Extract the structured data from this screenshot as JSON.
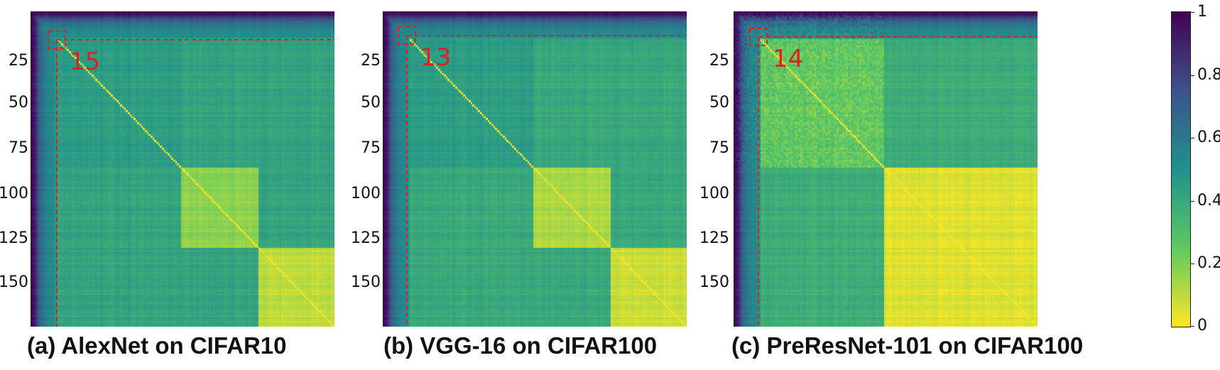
{
  "colors": {
    "colormap": [
      "#440154",
      "#3b528b",
      "#21918c",
      "#5ec962",
      "#fde725"
    ],
    "annotation": "#e02020"
  },
  "colorbar": {
    "ticks": [
      "1",
      "0.8",
      "0.6",
      "0.4",
      "0.2",
      "0"
    ]
  },
  "panels": [
    {
      "caption": "(a) AlexNet on CIFAR10",
      "annotation": "15"
    },
    {
      "caption": "(b) VGG-16 on CIFAR100",
      "annotation": "13"
    },
    {
      "caption": "(c) PreResNet-101 on CIFAR100",
      "annotation": "14"
    }
  ],
  "chart_data": [
    {
      "type": "heatmap",
      "title": "(a) AlexNet on CIFAR10",
      "size": 160,
      "yticks": [
        "25",
        "50",
        "75",
        "100",
        "125",
        "150"
      ],
      "ytick_values": [
        25,
        50,
        75,
        100,
        125,
        150
      ],
      "colorbar_range": [
        0,
        1
      ],
      "blocks": [
        {
          "range": [
            0,
            79
          ],
          "level": 0.45
        },
        {
          "range": [
            79,
            120
          ],
          "level": 0.18
        },
        {
          "range": [
            120,
            160
          ],
          "level": 0.1
        }
      ],
      "off_block_level": 0.42,
      "marked_index": 15,
      "annotation": "15"
    },
    {
      "type": "heatmap",
      "title": "(b) VGG-16 on CIFAR100",
      "size": 160,
      "yticks": [
        "25",
        "50",
        "75",
        "100",
        "125",
        "150"
      ],
      "ytick_values": [
        25,
        50,
        75,
        100,
        125,
        150
      ],
      "colorbar_range": [
        0,
        1
      ],
      "blocks": [
        {
          "range": [
            0,
            79
          ],
          "level": 0.45
        },
        {
          "range": [
            79,
            120
          ],
          "level": 0.13
        },
        {
          "range": [
            120,
            160
          ],
          "level": 0.08
        }
      ],
      "off_block_level": 0.4,
      "marked_index": 13,
      "annotation": "13"
    },
    {
      "type": "heatmap",
      "title": "(c) PreResNet-101 on CIFAR100",
      "size": 160,
      "yticks": [
        "25",
        "50",
        "75",
        "100",
        "125",
        "150"
      ],
      "ytick_values": [
        25,
        50,
        75,
        100,
        125,
        150
      ],
      "colorbar_range": [
        0,
        1
      ],
      "blocks": [
        {
          "range": [
            0,
            79
          ],
          "level": 0.25
        },
        {
          "range": [
            79,
            160
          ],
          "level": 0.05
        }
      ],
      "off_block_level": 0.38,
      "marked_index": 14,
      "annotation": "14"
    }
  ]
}
